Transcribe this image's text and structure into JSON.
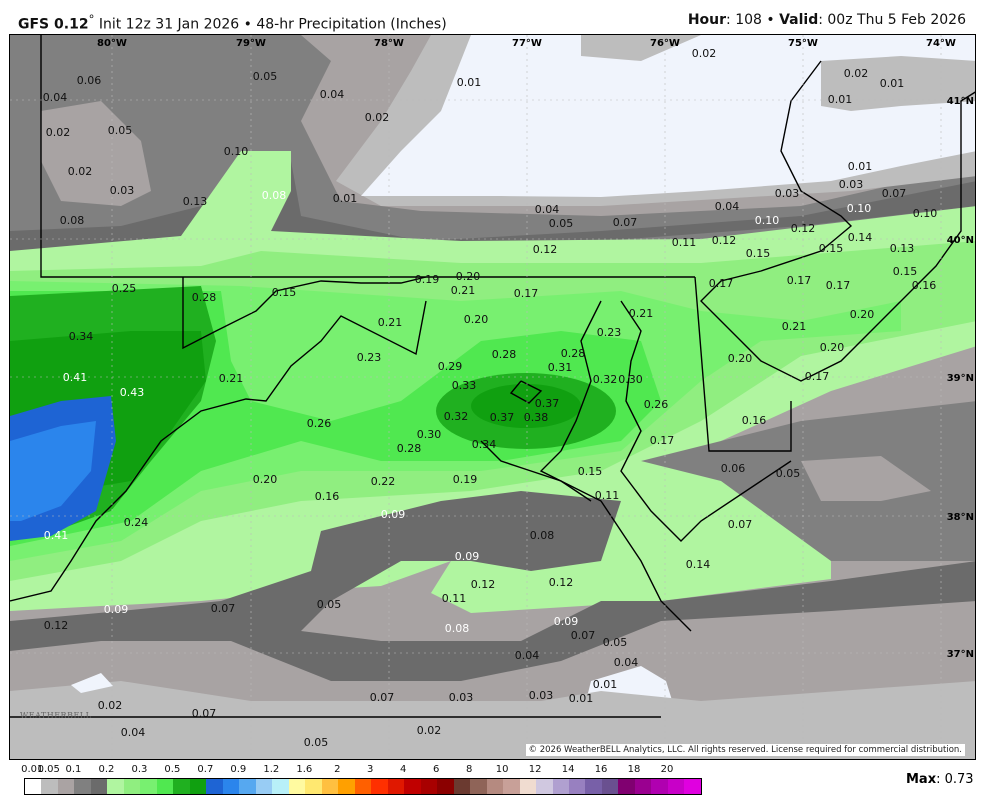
{
  "header": {
    "model": "GFS 0.12",
    "degree": "°",
    "init": " Init 12z 31 Jan 2026 • 48-hr Precipitation (Inches)",
    "hour_label": "Hour",
    "hour": ": 108 • ",
    "valid_label": "Valid",
    "valid": ": 00z Thu 5 Feb 2026"
  },
  "map": {
    "longitudes": [
      "80°W",
      "79°W",
      "78°W",
      "77°W",
      "76°W",
      "75°W",
      "74°W"
    ],
    "latitudes": [
      "41°N",
      "40°N",
      "39°N",
      "38°N",
      "37°N"
    ],
    "colors": {
      "none": "#f0f4fc",
      "trace": "#bdbdbd",
      "gray2": "#a8a3a3",
      "gray3": "#808080",
      "gray4": "#6b6b6b",
      "green1": "#b0f5a0",
      "green2": "#90ee80",
      "green3": "#78f070",
      "green4": "#50e850",
      "green5": "#20b020",
      "green6": "#10a010",
      "blue1": "#1e64d4",
      "blue2": "#2b85ec"
    },
    "labels": [
      [
        "0.06",
        88,
        79
      ],
      [
        "0.04",
        54,
        96
      ],
      [
        "0.02",
        57,
        131
      ],
      [
        "0.05",
        119,
        129
      ],
      [
        "0.02",
        79,
        170
      ],
      [
        "0.03",
        121,
        189
      ],
      [
        "0.08",
        71,
        219
      ],
      [
        "0.05",
        264,
        75
      ],
      [
        "0.04",
        331,
        93
      ],
      [
        "0.02",
        376,
        116
      ],
      [
        "0.01",
        468,
        81
      ],
      [
        "0.10",
        235,
        150
      ],
      [
        "0.13",
        194,
        200
      ],
      [
        "0.08",
        273,
        194,
        "w"
      ],
      [
        "0.01",
        344,
        197
      ],
      [
        "0.02",
        703,
        52
      ],
      [
        "0.02",
        855,
        72
      ],
      [
        "0.01",
        891,
        82
      ],
      [
        "0.01",
        839,
        98
      ],
      [
        "0.01",
        859,
        165
      ],
      [
        "0.03",
        850,
        183
      ],
      [
        "0.07",
        893,
        192
      ],
      [
        "0.03",
        786,
        192
      ],
      [
        "0.04",
        726,
        205
      ],
      [
        "0.10",
        766,
        219,
        "w"
      ],
      [
        "0.12",
        802,
        227
      ],
      [
        "0.10",
        858,
        207,
        "w"
      ],
      [
        "0.10",
        924,
        212
      ],
      [
        "0.04",
        546,
        208
      ],
      [
        "0.05",
        560,
        211
      ],
      [
        "0.07",
        624,
        221
      ],
      [
        "0.11",
        683,
        241
      ],
      [
        "0.12",
        723,
        239
      ],
      [
        "0.12",
        544,
        248
      ],
      [
        "0.15",
        757,
        252
      ],
      [
        "0.15",
        830,
        247
      ],
      [
        "0.14",
        859,
        236
      ],
      [
        "0.13",
        901,
        247
      ],
      [
        "0.15",
        904,
        270
      ],
      [
        "0.16",
        923,
        278
      ],
      [
        "0.17",
        720,
        282
      ],
      [
        "0.17",
        798,
        279
      ],
      [
        "0.17",
        837,
        284
      ],
      [
        "0.21",
        793,
        325
      ],
      [
        "0.20",
        861,
        313
      ],
      [
        "0.20",
        831,
        346
      ],
      [
        "0.17",
        816,
        375
      ],
      [
        "0.20",
        739,
        357
      ],
      [
        "0.16",
        753,
        419
      ],
      [
        "0.25",
        123,
        287
      ],
      [
        "0.28",
        203,
        296
      ],
      [
        "0.15",
        283,
        291
      ],
      [
        "0.19",
        426,
        278
      ],
      [
        "0.20",
        467,
        275
      ],
      [
        "0.21",
        462,
        286
      ],
      [
        "0.17",
        525,
        292
      ],
      [
        "0.21",
        389,
        321
      ],
      [
        "0.20",
        475,
        318
      ],
      [
        "0.21",
        640,
        312
      ],
      [
        "0.23",
        608,
        331
      ],
      [
        "0.28",
        572,
        352
      ],
      [
        "0.28",
        503,
        353
      ],
      [
        "0.31",
        559,
        364
      ],
      [
        "0.32",
        604,
        378
      ],
      [
        "0.30",
        625,
        378
      ],
      [
        "0.26",
        655,
        403
      ],
      [
        "0.17",
        661,
        439
      ],
      [
        "0.34",
        80,
        335
      ],
      [
        "0.41",
        74,
        376,
        "w"
      ],
      [
        "0.43",
        131,
        391,
        "w"
      ],
      [
        "0.21",
        230,
        377
      ],
      [
        "0.23",
        368,
        356
      ],
      [
        "0.29",
        449,
        365
      ],
      [
        "0.33",
        463,
        384
      ],
      [
        "0.37",
        546,
        402
      ],
      [
        "0.38",
        535,
        411
      ],
      [
        "0.37",
        501,
        416
      ],
      [
        "0.32",
        455,
        415
      ],
      [
        "0.30",
        428,
        433
      ],
      [
        "0.28",
        408,
        442
      ],
      [
        "0.34",
        483,
        443
      ],
      [
        "0.26",
        318,
        422
      ],
      [
        "0.20",
        264,
        478
      ],
      [
        "0.22",
        382,
        480
      ],
      [
        "0.19",
        464,
        478
      ],
      [
        "0.16",
        326,
        495
      ],
      [
        "0.15",
        589,
        470
      ],
      [
        "0.11",
        606,
        494
      ],
      [
        "0.06",
        732,
        467
      ],
      [
        "0.05",
        787,
        472
      ],
      [
        "0.07",
        739,
        523
      ],
      [
        "0.09",
        392,
        513,
        "w"
      ],
      [
        "0.24",
        135,
        521
      ],
      [
        "0.41",
        55,
        534,
        "w"
      ],
      [
        "0.08",
        541,
        534
      ],
      [
        "0.14",
        697,
        563
      ],
      [
        "0.09",
        466,
        555,
        "w"
      ],
      [
        "0.12",
        482,
        583
      ],
      [
        "0.12",
        560,
        581
      ],
      [
        "0.11",
        453,
        597
      ],
      [
        "0.09",
        565,
        620,
        "w"
      ],
      [
        "0.07",
        582,
        634
      ],
      [
        "0.05",
        614,
        641
      ],
      [
        "0.04",
        625,
        661
      ],
      [
        "0.08",
        456,
        627,
        "w"
      ],
      [
        "0.04",
        526,
        654
      ],
      [
        "0.01",
        604,
        683
      ],
      [
        "0.01",
        580,
        697
      ],
      [
        "0.03",
        540,
        694
      ],
      [
        "0.03",
        460,
        696
      ],
      [
        "0.07",
        381,
        696
      ],
      [
        "0.05",
        328,
        603
      ],
      [
        "0.07",
        222,
        607
      ],
      [
        "0.09",
        115,
        608,
        "w"
      ],
      [
        "0.12",
        55,
        624
      ],
      [
        "0.02",
        109,
        704
      ],
      [
        "0.07",
        203,
        712
      ],
      [
        "0.04",
        132,
        731
      ],
      [
        "0.05",
        315,
        741
      ],
      [
        "0.02",
        428,
        729
      ]
    ],
    "copyright": "© 2026 WeatherBELL Analytics, LLC. All rights reserved. License required for commercial distribution.",
    "logo": "WeatherBELL"
  },
  "colorbar": {
    "ticks": [
      "0.01",
      "0.05",
      "0.1",
      "0.2",
      "0.3",
      "0.5",
      "0.7",
      "0.9",
      "1.2",
      "1.6",
      "2",
      "3",
      "4",
      "6",
      "8",
      "10",
      "12",
      "14",
      "16",
      "18",
      "20"
    ],
    "colors": [
      "#ffffff",
      "#bdbdbd",
      "#aaa3a3",
      "#808080",
      "#6b6b6b",
      "#b0f5a0",
      "#90ee80",
      "#78f070",
      "#50e850",
      "#20b020",
      "#10a010",
      "#1e64d4",
      "#2b85ec",
      "#56a8f0",
      "#98ccf4",
      "#b8f0f8",
      "#fffaa0",
      "#ffe870",
      "#ffc040",
      "#ffa000",
      "#ff6000",
      "#ff3000",
      "#e01800",
      "#c00000",
      "#a80000",
      "#8b0000",
      "#6b3a30",
      "#8f6458",
      "#b58a80",
      "#c8a098",
      "#f0dcd0",
      "#d0c8e0",
      "#b0a0d0",
      "#9880c0",
      "#7860a8",
      "#6a5090",
      "#800070",
      "#9a0090",
      "#b000b0",
      "#c800c8",
      "#e000e0"
    ]
  },
  "max": {
    "label": "Max",
    "value": ": 0.73"
  }
}
